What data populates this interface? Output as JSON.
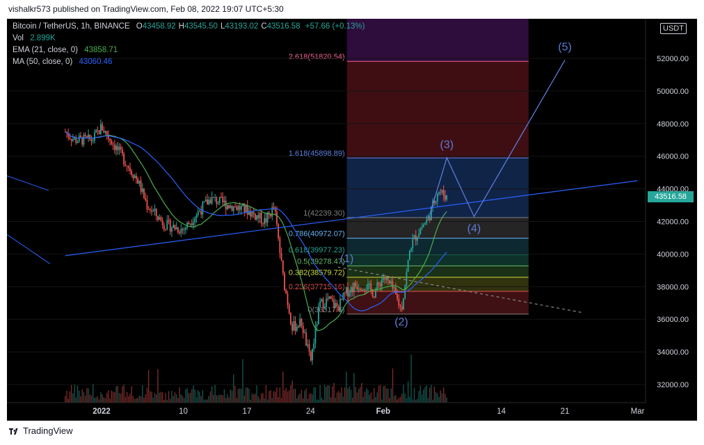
{
  "header": {
    "publisher_line": "vishalkr573 published on TradingView.com, Feb 08, 2022 19:07 UTC+5:30"
  },
  "footer": {
    "brand": "TradingView"
  },
  "legend": {
    "symbol": "Bitcoin / TetherUS, 1h, BINANCE",
    "ohlc": [
      {
        "label": "O",
        "value": "43458.92"
      },
      {
        "label": "H",
        "value": "43545.50"
      },
      {
        "label": "L",
        "value": "43193.02"
      },
      {
        "label": "C",
        "value": "43516.58"
      }
    ],
    "change": "+57.66 (+0.13%)",
    "vol_label": "Vol",
    "vol_value": "2.899K",
    "ema_label": "EMA (21, close, 0)",
    "ema_value": "43858.71",
    "ma_label": "MA (50, close, 0)",
    "ma_value": "43060.46"
  },
  "currency_badge": "USDT",
  "last_price": "43516.58",
  "colors": {
    "background": "#000000",
    "candle_up": "#26a69a",
    "candle_down": "#ef5350",
    "ema": "#4caf50",
    "ma": "#2962ff",
    "wave": "#5c7bd6",
    "price_tag": "#26a69a"
  },
  "chart_data": {
    "type": "candlestick",
    "symbol": "BTCUSDT",
    "interval": "1h",
    "ylim": [
      31000,
      54000
    ],
    "yticks": [
      32000,
      34000,
      36000,
      38000,
      40000,
      42000,
      44000,
      46000,
      48000,
      50000,
      52000
    ],
    "ytick_labels": [
      "32000.00",
      "34000.00",
      "36000.00",
      "38000.00",
      "40000.00",
      "42000.00",
      "44000.00",
      "46000.00",
      "48000.00",
      "50000.00",
      "52000.00"
    ],
    "xtick_labels": [
      "2022",
      "10",
      "17",
      "24",
      "Feb",
      "14",
      "21",
      "Mar"
    ],
    "xtick_dates": [
      "2022-01-01",
      "2022-01-10",
      "2022-01-17",
      "2022-01-24",
      "2022-02-01",
      "2022-02-14",
      "2022-02-21",
      "2022-03-01"
    ],
    "price_path": [
      [
        "2021-12-28",
        47500
      ],
      [
        "2021-12-29",
        47000
      ],
      [
        "2021-12-31",
        47000
      ],
      [
        "2022-01-01",
        47800
      ],
      [
        "2022-01-03",
        46200
      ],
      [
        "2022-01-05",
        44500
      ],
      [
        "2022-01-06",
        43000
      ],
      [
        "2022-01-08",
        41800
      ],
      [
        "2022-01-10",
        41500
      ],
      [
        "2022-01-12",
        42800
      ],
      [
        "2022-01-13",
        43400
      ],
      [
        "2022-01-15",
        43000
      ],
      [
        "2022-01-17",
        42700
      ],
      [
        "2022-01-19",
        42000
      ],
      [
        "2022-01-20",
        42900
      ],
      [
        "2022-01-21",
        38500
      ],
      [
        "2022-01-22",
        35500
      ],
      [
        "2022-01-23",
        35800
      ],
      [
        "2022-01-24",
        33400
      ],
      [
        "2022-01-25",
        36900
      ],
      [
        "2022-01-26",
        37200
      ],
      [
        "2022-01-27",
        36700
      ],
      [
        "2022-01-28",
        37700
      ],
      [
        "2022-01-29",
        38100
      ],
      [
        "2022-01-30",
        38100
      ],
      [
        "2022-01-31",
        37600
      ],
      [
        "2022-02-01",
        38600
      ],
      [
        "2022-02-02",
        37900
      ],
      [
        "2022-02-03",
        36600
      ],
      [
        "2022-02-04",
        40500
      ],
      [
        "2022-02-05",
        41500
      ],
      [
        "2022-02-06",
        42200
      ],
      [
        "2022-02-07",
        43900
      ],
      [
        "2022-02-08",
        43516.58
      ]
    ],
    "fib_levels": [
      {
        "label": "2.618(51820.54)",
        "ratio": 2.618,
        "price": 51820.54,
        "color": "#f06292"
      },
      {
        "label": "1.618(45898.89)",
        "ratio": 1.618,
        "price": 45898.89,
        "color": "#5b7fe0"
      },
      {
        "label": "1(42239.30)",
        "ratio": 1,
        "price": 42239.3,
        "color": "#808080"
      },
      {
        "label": "0.786(40972.07)",
        "ratio": 0.786,
        "price": 40972.07,
        "color": "#64b5f6"
      },
      {
        "label": "0.618(39977.23)",
        "ratio": 0.618,
        "price": 39977.23,
        "color": "#26a69a"
      },
      {
        "label": "0.5(39278.47)",
        "ratio": 0.5,
        "price": 39278.47,
        "color": "#66bb6a"
      },
      {
        "label": "0.382(38579.72)",
        "ratio": 0.382,
        "price": 38579.72,
        "color": "#cddc39"
      },
      {
        "label": "0.236(37715.16)",
        "ratio": 0.236,
        "price": 37715.16,
        "color": "#ef5350"
      },
      {
        "label": "0(36317.6)",
        "ratio": 0,
        "price": 36317.6,
        "color": "#808080"
      }
    ],
    "elliott_waves": [
      {
        "label": "(1)",
        "date": "2022-01-28",
        "price": 38900
      },
      {
        "label": "(2)",
        "date": "2022-02-03",
        "price": 36300
      },
      {
        "label": "(3)",
        "date": "2022-02-08",
        "price": 45900
      },
      {
        "label": "(4)",
        "date": "2022-02-11",
        "price": 42300
      },
      {
        "label": "(5)",
        "date": "2022-02-21",
        "price": 51900
      }
    ],
    "trendlines": [
      {
        "from": [
          "2021-12-28",
          39900
        ],
        "to": [
          "2022-03-01",
          44500
        ],
        "style": "solid"
      },
      {
        "from": [
          "2022-01-27",
          39200
        ],
        "to": [
          "2022-02-23",
          36400
        ],
        "style": "dashed"
      }
    ]
  }
}
